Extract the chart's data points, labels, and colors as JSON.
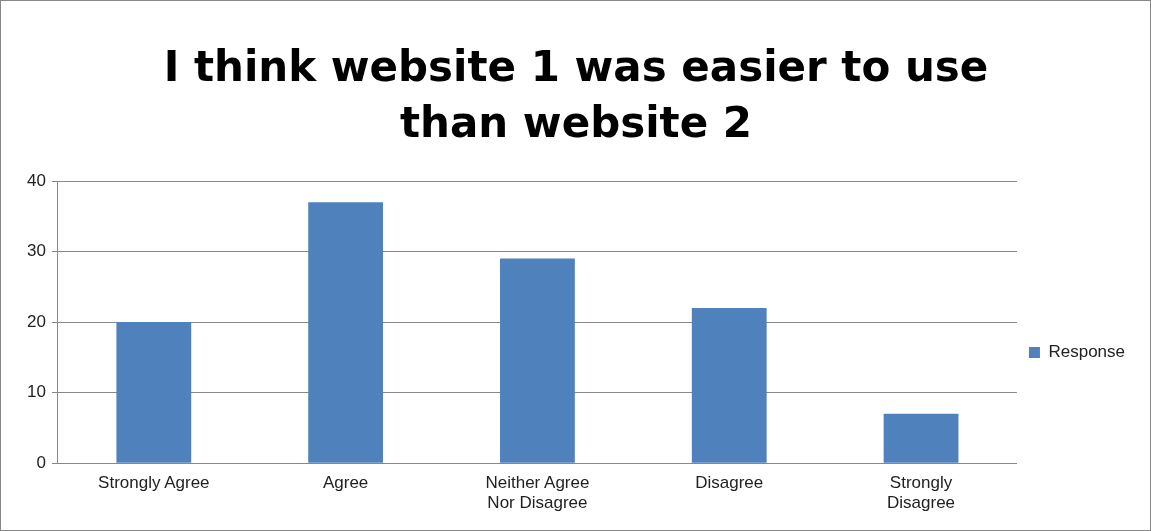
{
  "chart_data": {
    "type": "bar",
    "title": "I think website 1 was easier to use than website 2",
    "categories": [
      "Strongly Agree",
      "Agree",
      "Neither Agree Nor Disagree",
      "Disagree",
      "Strongly Disagree"
    ],
    "series": [
      {
        "name": "Response",
        "color": "#4f81bd",
        "values": [
          20,
          37,
          29,
          22,
          7
        ]
      }
    ],
    "ylim": [
      0,
      40
    ],
    "yticks": [
      0,
      10,
      20,
      30,
      40
    ],
    "grid": "y",
    "legend": "right"
  }
}
